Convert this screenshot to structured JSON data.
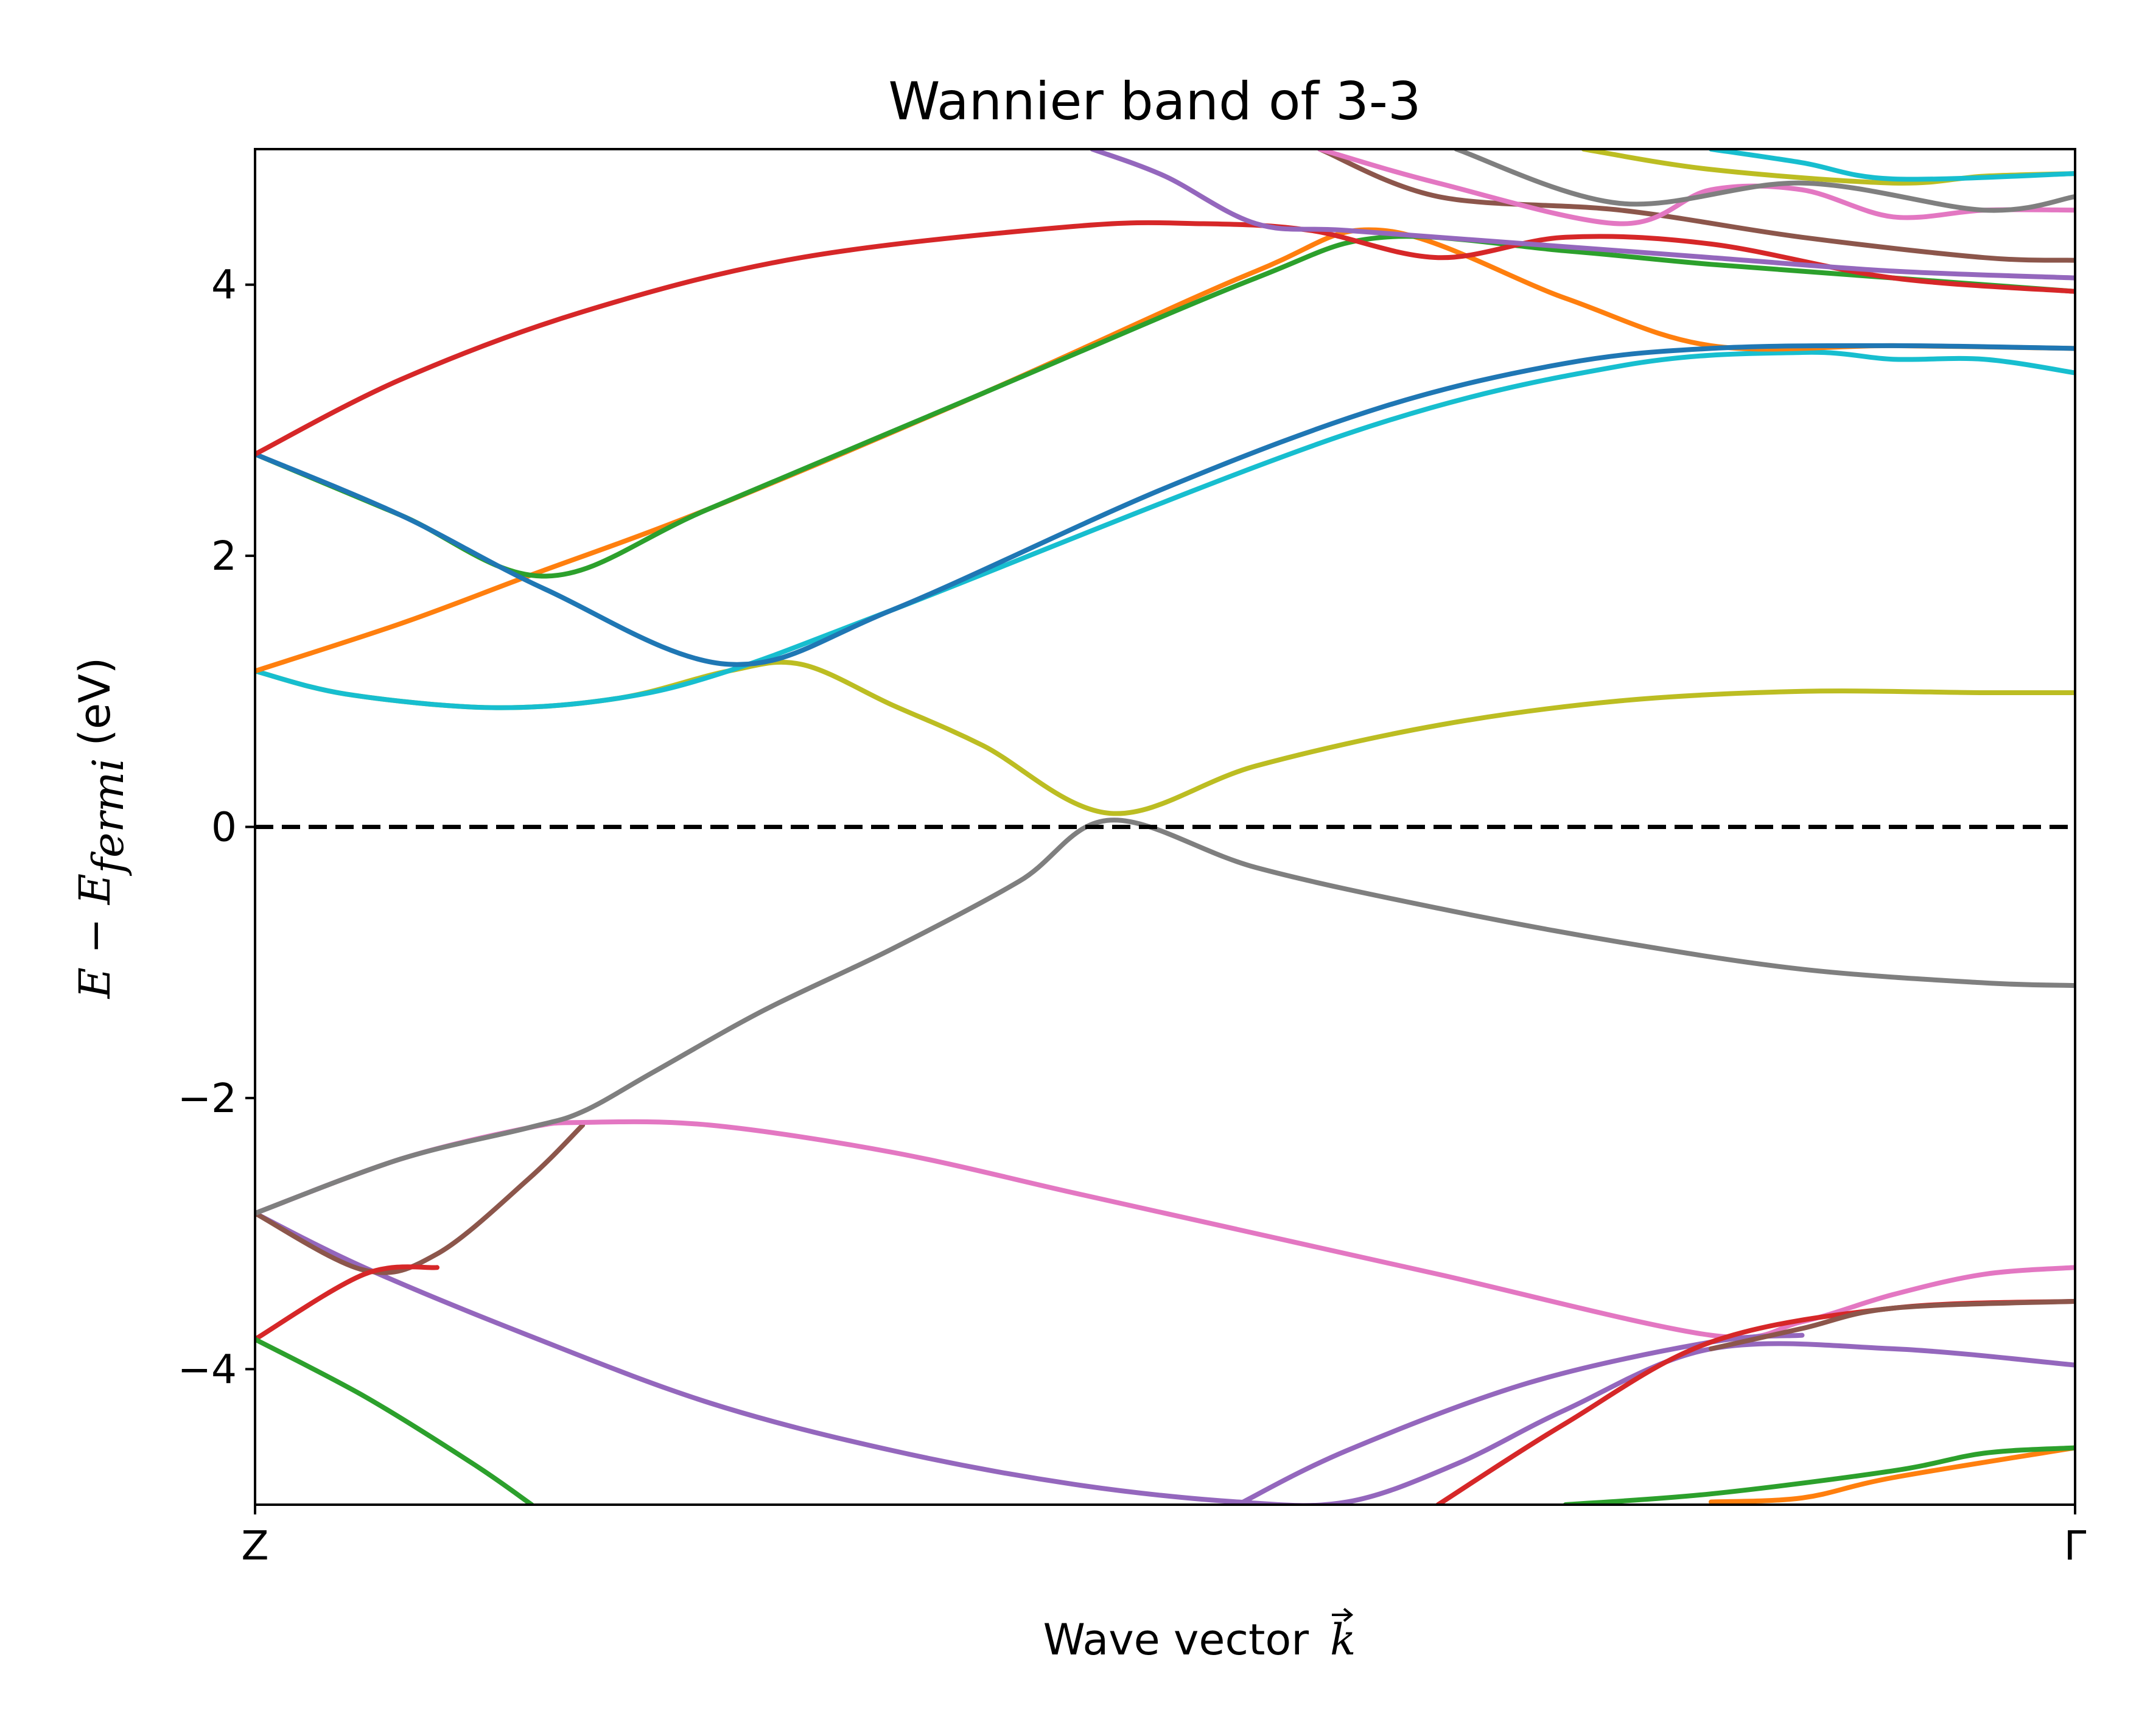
{
  "chart_data": {
    "type": "line",
    "title": "Wannier band of 3-3",
    "xlabel": "Wave vector",
    "xlabel_symbol": "k",
    "ylabel": "E − E",
    "ylabel_subscript": "fermi",
    "ylabel_unit": "(eV)",
    "xlim": [
      0,
      1
    ],
    "ylim": [
      -5,
      5
    ],
    "x_ticks": [
      {
        "x": 0,
        "label": "Z"
      },
      {
        "x": 1,
        "label": "Γ"
      }
    ],
    "y_ticks": [
      {
        "y": -4,
        "label": "−4"
      },
      {
        "y": -2,
        "label": "−2"
      },
      {
        "y": 0,
        "label": "0"
      },
      {
        "y": 2,
        "label": "2"
      },
      {
        "y": 4,
        "label": "4"
      }
    ],
    "fermi_line": {
      "y": 0,
      "style": "dashed",
      "color": "#000000"
    },
    "grid": false,
    "legend": "none",
    "series": [
      {
        "color": "#9467bd",
        "x": [
          0,
          0.06,
          0.15,
          0.25,
          0.35,
          0.45,
          0.54,
          0.6,
          0.66,
          0.72,
          0.8,
          0.9,
          1.0
        ],
        "y": [
          -2.85,
          -3.25,
          -3.75,
          -4.25,
          -4.6,
          -4.85,
          -4.98,
          -4.98,
          -4.7,
          -4.3,
          -3.85,
          -3.85,
          -3.97
        ]
      },
      {
        "color": "#8c564b",
        "x": [
          0,
          0.06,
          0.1,
          0.15,
          0.18
        ],
        "y": [
          -2.85,
          -3.27,
          -3.15,
          -2.6,
          -2.2
        ]
      },
      {
        "color": "#d62728",
        "x": [
          0,
          0.06,
          0.1
        ],
        "y": [
          -3.78,
          -3.3,
          -3.25
        ]
      },
      {
        "color": "#2ca02c",
        "x": [
          0,
          0.06,
          0.12,
          0.152
        ],
        "y": [
          -3.78,
          -4.2,
          -4.7,
          -5.0
        ]
      },
      {
        "color": "#e377c2",
        "x": [
          0,
          0.08,
          0.15,
          0.18,
          0.25,
          0.35,
          0.45,
          0.55,
          0.65,
          0.8,
          0.85,
          0.9,
          0.95,
          1.0
        ],
        "y": [
          -2.85,
          -2.45,
          -2.22,
          -2.18,
          -2.2,
          -2.4,
          -2.7,
          -3.0,
          -3.3,
          -3.75,
          -3.65,
          -3.45,
          -3.3,
          -3.25
        ]
      },
      {
        "color": "#7f7f7f",
        "x": [
          0,
          0.08,
          0.15,
          0.18,
          0.22,
          0.28,
          0.35,
          0.42,
          0.47,
          0.55,
          0.65,
          0.75,
          0.85,
          0.95,
          1.0
        ],
        "y": [
          -2.85,
          -2.45,
          -2.22,
          -2.1,
          -1.8,
          -1.35,
          -0.9,
          -0.4,
          0.05,
          -0.3,
          -0.6,
          -0.85,
          -1.05,
          -1.15,
          -1.17
        ]
      },
      {
        "color": "#bcbd22",
        "x": [
          0,
          0.05,
          0.13,
          0.2,
          0.26,
          0.3,
          0.35,
          0.4,
          0.47,
          0.55,
          0.65,
          0.75,
          0.85,
          0.95,
          1.0
        ],
        "y": [
          1.15,
          0.98,
          0.88,
          0.95,
          1.15,
          1.2,
          0.9,
          0.6,
          0.1,
          0.45,
          0.75,
          0.93,
          1.0,
          0.99,
          0.99
        ]
      },
      {
        "color": "#17becf",
        "x": [
          0,
          0.05,
          0.13,
          0.2,
          0.26,
          0.35,
          0.6,
          0.75,
          0.85,
          0.9,
          0.95,
          1.0
        ],
        "y": [
          1.15,
          0.98,
          0.88,
          0.95,
          1.15,
          1.6,
          2.9,
          3.4,
          3.5,
          3.45,
          3.45,
          3.35
        ]
      },
      {
        "color": "#ff7f0e",
        "x": [
          0,
          0.08,
          0.15,
          0.25,
          0.4,
          0.55,
          0.62,
          0.72,
          0.8,
          0.9,
          1.0
        ],
        "y": [
          1.15,
          1.5,
          1.85,
          2.35,
          3.2,
          4.1,
          4.4,
          3.9,
          3.55,
          3.55,
          3.53
        ]
      },
      {
        "color": "#2ca02c",
        "x": [
          0,
          0.08,
          0.16,
          0.25,
          0.4,
          0.55,
          0.62,
          0.72,
          0.8,
          0.9,
          1.0
        ],
        "y": [
          2.75,
          2.3,
          1.85,
          2.35,
          3.2,
          4.05,
          4.35,
          4.25,
          4.15,
          4.05,
          3.95
        ]
      },
      {
        "color": "#1f77b4",
        "x": [
          0,
          0.08,
          0.16,
          0.26,
          0.35,
          0.5,
          0.62,
          0.72,
          0.8,
          0.9,
          1.0
        ],
        "y": [
          2.75,
          2.3,
          1.75,
          1.2,
          1.6,
          2.5,
          3.1,
          3.42,
          3.53,
          3.55,
          3.53
        ]
      },
      {
        "color": "#d62728",
        "x": [
          0,
          0.08,
          0.18,
          0.3,
          0.45,
          0.52,
          0.58,
          0.65,
          0.72,
          0.8,
          0.9,
          1.0
        ],
        "y": [
          2.75,
          3.3,
          3.8,
          4.2,
          4.43,
          4.45,
          4.4,
          4.2,
          4.35,
          4.3,
          4.05,
          3.95
        ]
      },
      {
        "color": "#9467bd",
        "x": [
          0.46,
          0.5,
          0.55,
          0.6,
          0.7,
          0.8,
          0.9,
          1.0
        ],
        "y": [
          5.0,
          4.8,
          4.45,
          4.4,
          4.3,
          4.2,
          4.1,
          4.05
        ]
      },
      {
        "color": "#8c564b",
        "x": [
          0.585,
          0.65,
          0.75,
          0.85,
          0.95,
          1.0
        ],
        "y": [
          5.0,
          4.65,
          4.55,
          4.35,
          4.2,
          4.18
        ]
      },
      {
        "color": "#e377c2",
        "x": [
          0.585,
          0.65,
          0.75,
          0.8,
          0.85,
          0.9,
          0.95,
          1.0
        ],
        "y": [
          5.0,
          4.75,
          4.45,
          4.7,
          4.7,
          4.5,
          4.55,
          4.55
        ]
      },
      {
        "color": "#7f7f7f",
        "x": [
          0.66,
          0.75,
          0.85,
          0.95,
          1.0
        ],
        "y": [
          5.0,
          4.6,
          4.75,
          4.55,
          4.65
        ]
      },
      {
        "color": "#bcbd22",
        "x": [
          0.73,
          0.8,
          0.9,
          0.95,
          1.0
        ],
        "y": [
          5.0,
          4.85,
          4.75,
          4.8,
          4.82
        ]
      },
      {
        "color": "#17becf",
        "x": [
          0.8,
          0.85,
          0.9,
          1.0
        ],
        "y": [
          5.0,
          4.9,
          4.78,
          4.82
        ]
      },
      {
        "color": "#9467bd",
        "x": [
          0.54,
          0.6,
          0.7,
          0.8,
          0.85
        ],
        "y": [
          -5.0,
          -4.6,
          -4.1,
          -3.8,
          -3.75
        ]
      },
      {
        "color": "#d62728",
        "x": [
          0.65,
          0.72,
          0.8,
          0.9,
          1.0
        ],
        "y": [
          -5.0,
          -4.4,
          -3.8,
          -3.55,
          -3.5
        ]
      },
      {
        "color": "#8c564b",
        "x": [
          0.8,
          0.85,
          0.9,
          1.0
        ],
        "y": [
          -3.85,
          -3.7,
          -3.55,
          -3.5
        ]
      },
      {
        "color": "#ff7f0e",
        "x": [
          0.8,
          0.85,
          0.9,
          1.0
        ],
        "y": [
          -4.98,
          -4.95,
          -4.8,
          -4.58
        ]
      },
      {
        "color": "#2ca02c",
        "x": [
          0.72,
          0.8,
          0.9,
          0.95,
          1.0
        ],
        "y": [
          -5.0,
          -4.92,
          -4.75,
          -4.62,
          -4.58
        ]
      }
    ]
  }
}
